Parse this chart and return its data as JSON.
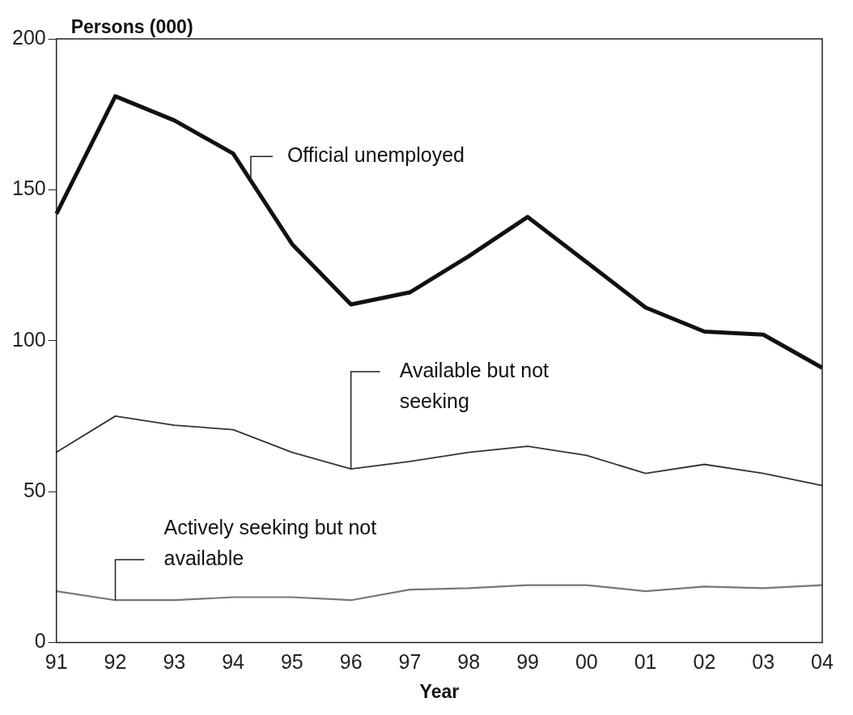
{
  "chart_data": {
    "type": "line",
    "xlabel": "Year",
    "ylabel": "Persons (000)",
    "categories": [
      "91",
      "92",
      "93",
      "94",
      "95",
      "96",
      "97",
      "98",
      "99",
      "00",
      "01",
      "02",
      "03",
      "04"
    ],
    "series": [
      {
        "name": "Official unemployed",
        "color": "#111111",
        "values": [
          142,
          181,
          173,
          162,
          132,
          112,
          116,
          128,
          141,
          126,
          111,
          103,
          102,
          91
        ]
      },
      {
        "name": "Available but not seeking",
        "color": "#333333",
        "values": [
          63,
          75,
          72,
          70.5,
          63,
          57.5,
          60,
          63,
          65,
          62,
          56,
          59,
          56,
          52
        ]
      },
      {
        "name": "Actively seeking but not available",
        "color": "#777777",
        "values": [
          17,
          14,
          14,
          15,
          15,
          14,
          17.5,
          18,
          19,
          19,
          17,
          18.5,
          18,
          19
        ]
      }
    ],
    "ylim": [
      0,
      200
    ],
    "yticks": [
      0,
      50,
      100,
      150,
      200
    ],
    "grid": false,
    "legend": false,
    "marker": "none",
    "line_style": "solid"
  }
}
